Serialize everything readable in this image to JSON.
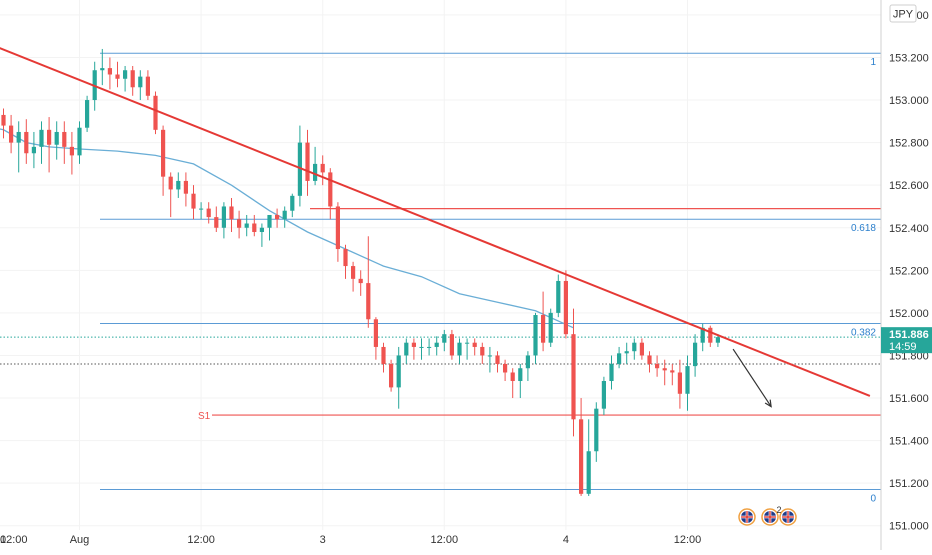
{
  "chart_data": {
    "type": "candlestick",
    "currency": "JPY",
    "price_axis": {
      "ylim": [
        150.98,
        153.47
      ],
      "ticks": [
        153.4,
        153.2,
        153.0,
        152.8,
        152.6,
        152.4,
        152.2,
        152.0,
        151.8,
        151.6,
        151.4,
        151.2,
        151.0
      ],
      "tick_labels": [
        "153.400",
        "153.200",
        "153.000",
        "152.800",
        "152.600",
        "152.400",
        "152.200",
        "152.000",
        "151.800",
        "151.600",
        "151.400",
        "151.200",
        "151.000"
      ]
    },
    "time_axis": {
      "labels": [
        "0",
        "12:00",
        "Aug",
        "12:00",
        "3",
        "12:00",
        "4",
        "12:00"
      ],
      "bar_index": [
        -22,
        -6,
        10,
        26,
        42,
        58,
        74,
        90
      ]
    },
    "current_price": {
      "label": "151.886",
      "countdown": "14:59",
      "value": 151.886,
      "color": "#26a69a"
    },
    "fib_levels": [
      {
        "label": "1",
        "value": 153.22
      },
      {
        "label": "0.618",
        "value": 152.44
      },
      {
        "label": "0.382",
        "value": 151.95
      },
      {
        "label": "0",
        "value": 151.17
      }
    ],
    "support": {
      "label": "S1",
      "value": 151.52
    },
    "resistance_value": 152.49,
    "dotted_value": 151.76,
    "trendline": {
      "from": [
        -10,
        153.38
      ],
      "to": [
        114,
        151.61
      ]
    },
    "arrow": {
      "from": [
        96,
        151.83
      ],
      "to": [
        101,
        151.56
      ]
    },
    "moving_average": {
      "index": [
        -15,
        -10,
        -5,
        0,
        3,
        6,
        10,
        15,
        20,
        25,
        30,
        35,
        40,
        45,
        50,
        55,
        60,
        65,
        70,
        75
      ],
      "value": [
        152.82,
        152.86,
        152.9,
        152.86,
        152.8,
        152.78,
        152.77,
        152.76,
        152.74,
        152.7,
        152.6,
        152.48,
        152.38,
        152.3,
        152.22,
        152.17,
        152.09,
        152.05,
        152.01,
        151.93
      ]
    },
    "candles": {
      "o": [
        152.93,
        152.88,
        152.8,
        152.85,
        152.75,
        152.78,
        152.86,
        152.79,
        152.85,
        152.78,
        152.74,
        152.87,
        153.0,
        153.14,
        153.15,
        153.12,
        153.1,
        153.14,
        153.06,
        153.11,
        153.02,
        152.86,
        152.64,
        152.58,
        152.62,
        152.56,
        152.49,
        152.49,
        152.45,
        152.4,
        152.5,
        152.44,
        152.4,
        152.42,
        152.38,
        152.4,
        152.46,
        152.44,
        152.48,
        152.55,
        152.8,
        152.62,
        152.7,
        152.66,
        152.5,
        152.3,
        152.22,
        152.16,
        152.14,
        151.97,
        151.84,
        151.76,
        151.65,
        151.8,
        151.86,
        151.84,
        151.84,
        151.84,
        151.86,
        151.9,
        151.8,
        151.86,
        151.86,
        151.84,
        151.8,
        151.8,
        151.76,
        151.72,
        151.68,
        151.74,
        151.8,
        151.99,
        151.86,
        152.0,
        152.15,
        151.9,
        151.5,
        151.15,
        151.35,
        151.55,
        151.68,
        151.76,
        151.81,
        151.82,
        151.86,
        151.8,
        151.76,
        151.74,
        151.73,
        151.72,
        151.62,
        151.75,
        151.86,
        151.93,
        151.86
      ],
      "h": [
        152.96,
        152.93,
        152.9,
        152.91,
        152.85,
        152.9,
        152.92,
        152.9,
        152.9,
        152.85,
        152.9,
        153.02,
        153.18,
        153.24,
        153.2,
        153.18,
        153.16,
        153.16,
        153.14,
        153.14,
        153.04,
        152.88,
        152.66,
        152.66,
        152.66,
        152.6,
        152.52,
        152.52,
        152.5,
        152.52,
        152.54,
        152.48,
        152.46,
        152.46,
        152.42,
        152.46,
        152.49,
        152.5,
        152.56,
        152.88,
        152.86,
        152.78,
        152.74,
        152.68,
        152.52,
        152.32,
        152.24,
        152.2,
        152.36,
        151.98,
        151.86,
        151.78,
        151.84,
        151.88,
        151.88,
        151.88,
        151.88,
        151.89,
        151.92,
        151.92,
        151.88,
        151.88,
        151.88,
        151.86,
        151.84,
        151.82,
        151.78,
        151.74,
        151.76,
        151.82,
        152.0,
        152.1,
        152.02,
        152.18,
        152.2,
        152.02,
        151.6,
        151.5,
        151.58,
        151.7,
        151.8,
        151.84,
        151.86,
        151.88,
        151.88,
        151.82,
        151.8,
        151.78,
        151.76,
        151.78,
        151.8,
        151.9,
        151.95,
        151.94,
        151.9
      ],
      "l": [
        152.82,
        152.75,
        152.66,
        152.7,
        152.68,
        152.7,
        152.66,
        152.72,
        152.7,
        152.65,
        152.7,
        152.85,
        152.95,
        153.07,
        153.05,
        153.06,
        153.04,
        153.02,
        153.0,
        153.0,
        152.84,
        152.55,
        152.45,
        152.54,
        152.5,
        152.44,
        152.44,
        152.42,
        152.38,
        152.35,
        152.38,
        152.35,
        152.36,
        152.36,
        152.31,
        152.34,
        152.4,
        152.4,
        152.45,
        152.5,
        152.55,
        152.6,
        152.6,
        152.44,
        152.24,
        152.16,
        152.1,
        152.08,
        151.93,
        151.78,
        151.72,
        151.63,
        151.55,
        151.76,
        151.78,
        151.78,
        151.8,
        151.8,
        151.82,
        151.78,
        151.76,
        151.78,
        151.8,
        151.76,
        151.72,
        151.72,
        151.68,
        151.6,
        151.6,
        151.68,
        151.76,
        151.82,
        151.84,
        151.98,
        151.88,
        151.42,
        151.14,
        151.14,
        151.3,
        151.52,
        151.64,
        151.74,
        151.76,
        151.78,
        151.78,
        151.72,
        151.7,
        151.66,
        151.66,
        151.55,
        151.54,
        151.7,
        151.82,
        151.84,
        151.84
      ],
      "c": [
        152.88,
        152.8,
        152.85,
        152.75,
        152.78,
        152.86,
        152.79,
        152.85,
        152.78,
        152.74,
        152.87,
        153.0,
        153.14,
        153.15,
        153.12,
        153.1,
        153.14,
        153.06,
        153.11,
        153.02,
        152.86,
        152.64,
        152.58,
        152.62,
        152.56,
        152.49,
        152.49,
        152.45,
        152.4,
        152.5,
        152.44,
        152.4,
        152.42,
        152.38,
        152.4,
        152.46,
        152.44,
        152.48,
        152.55,
        152.8,
        152.62,
        152.7,
        152.66,
        152.5,
        152.3,
        152.22,
        152.16,
        152.14,
        151.97,
        151.84,
        151.76,
        151.65,
        151.8,
        151.86,
        151.84,
        151.84,
        151.84,
        151.86,
        151.9,
        151.8,
        151.86,
        151.86,
        151.84,
        151.8,
        151.8,
        151.76,
        151.72,
        151.68,
        151.74,
        151.8,
        151.99,
        151.86,
        152.0,
        152.15,
        151.9,
        151.5,
        151.15,
        151.35,
        151.55,
        151.68,
        151.76,
        151.81,
        151.82,
        151.86,
        151.8,
        151.76,
        151.74,
        151.73,
        151.72,
        151.62,
        151.75,
        151.86,
        151.93,
        151.86,
        151.886
      ]
    },
    "colors": {
      "up": "#26a69a",
      "down": "#ef5350",
      "fib": "#5b9bd5",
      "fib_text": "#2b7fcc",
      "ma": "#6aaed6",
      "trendline": "#e53935",
      "support": "#ef5350",
      "resistance": "#ef5350",
      "dotted": "#555555",
      "axis_text": "#333333"
    },
    "event_icons": [
      "uk-flag-icon",
      "uk-flag-icon",
      "uk-flag-icon"
    ],
    "event_count": "2"
  }
}
